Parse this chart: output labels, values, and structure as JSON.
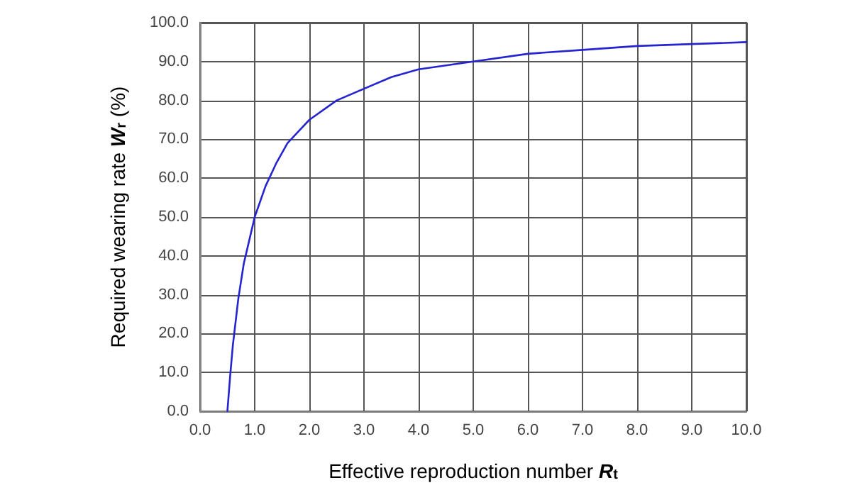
{
  "chart_data": {
    "type": "line",
    "xlabel": "Effective reproduction number R$_{t}$",
    "ylabel": "Required wearing rate W$_{r}$ (%)",
    "series": [
      {
        "color": "#2424d0",
        "x": [
          0.5,
          0.55,
          0.6,
          0.7,
          0.8,
          0.9,
          1.0,
          1.2,
          1.4,
          1.6,
          1.8,
          2.0,
          2.5,
          3.0,
          3.5,
          4.0,
          5.0,
          6.0,
          7.0,
          8.0,
          9.0,
          10.0
        ],
        "values": [
          0,
          9,
          17,
          29,
          38,
          44,
          50,
          58,
          64,
          69,
          72,
          75,
          80,
          83,
          86,
          88,
          90,
          92,
          93,
          94,
          94.5,
          95
        ]
      }
    ],
    "xlim": [
      0,
      10
    ],
    "ylim": [
      0,
      100
    ],
    "xticks": [
      {
        "value": 0,
        "label": "0.0"
      },
      {
        "value": 1,
        "label": "1.0"
      },
      {
        "value": 2,
        "label": "2.0"
      },
      {
        "value": 3,
        "label": "3.0"
      },
      {
        "value": 4,
        "label": "4.0"
      },
      {
        "value": 5,
        "label": "5.0"
      },
      {
        "value": 6,
        "label": "6.0"
      },
      {
        "value": 7,
        "label": "7.0"
      },
      {
        "value": 8,
        "label": "8.0"
      },
      {
        "value": 9,
        "label": "9.0"
      },
      {
        "value": 10,
        "label": "10.0"
      }
    ],
    "yticks": [
      {
        "value": 0,
        "label": "0.0"
      },
      {
        "value": 10,
        "label": "10.0"
      },
      {
        "value": 20,
        "label": "20.0"
      },
      {
        "value": 30,
        "label": "30.0"
      },
      {
        "value": 40,
        "label": "40.0"
      },
      {
        "value": 50,
        "label": "50.0"
      },
      {
        "value": 60,
        "label": "60.0"
      },
      {
        "value": 70,
        "label": "70.0"
      },
      {
        "value": 80,
        "label": "80.0"
      },
      {
        "value": 90,
        "label": "90.0"
      },
      {
        "value": 100,
        "label": "100.0"
      }
    ],
    "grid": true,
    "marker": "none",
    "line_style": "solid"
  }
}
